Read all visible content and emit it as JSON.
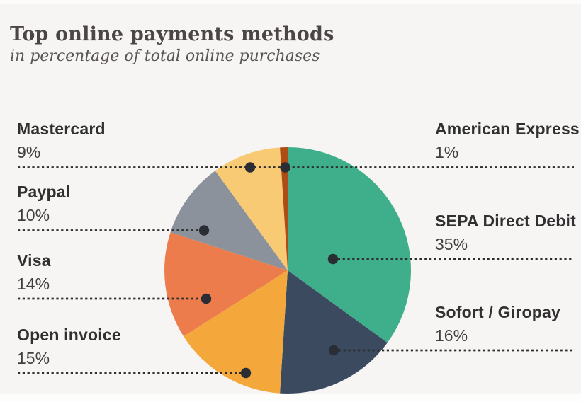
{
  "title": "Top online payments methods",
  "subtitle": "in percentage of total online purchases",
  "background_color": "#f6f5f4",
  "leader_line_color": "#2d2d2d",
  "leader_dot_color": "#2a2d33",
  "chart_data": {
    "type": "pie",
    "title": "Top online payments methods",
    "subtitle": "in percentage of total online purchases",
    "unit": "%",
    "start_angle_deg": 0,
    "direction": "clockwise",
    "legend_position": "labels-left-and-right-with-dotted-leaders",
    "slices": [
      {
        "label": "SEPA Direct Debit",
        "value": 35,
        "pct_label": "35%",
        "color": "#3fae8a"
      },
      {
        "label": "Sofort / Giropay",
        "value": 16,
        "pct_label": "16%",
        "color": "#3b4a5f"
      },
      {
        "label": "Open invoice",
        "value": 15,
        "pct_label": "15%",
        "color": "#f4a83b"
      },
      {
        "label": "Visa",
        "value": 14,
        "pct_label": "14%",
        "color": "#ec7c4c"
      },
      {
        "label": "Paypal",
        "value": 10,
        "pct_label": "10%",
        "color": "#8b929c"
      },
      {
        "label": "Mastercard",
        "value": 9,
        "pct_label": "9%",
        "color": "#f8ca74"
      },
      {
        "label": "American Express",
        "value": 1,
        "pct_label": "1%",
        "color": "#ad4d15"
      }
    ]
  }
}
